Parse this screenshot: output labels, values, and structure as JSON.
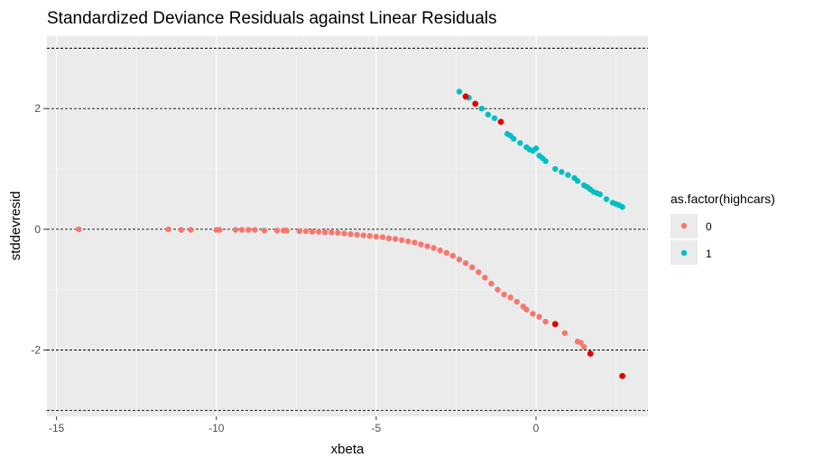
{
  "chart_data": {
    "type": "scatter",
    "title": "Standardized Deviance Residuals against Linear Residuals",
    "xlabel": "xbeta",
    "ylabel": "stddevresid",
    "xlim": [
      -15.3,
      3.5
    ],
    "ylim": [
      -3.1,
      3.2
    ],
    "x_ticks": [
      -15,
      -10,
      -5,
      0
    ],
    "y_ticks": [
      -2,
      0,
      2
    ],
    "grid": true,
    "legend": {
      "title": "as.factor(highcars)",
      "position": "right",
      "entries": [
        {
          "label": "0",
          "color": "#F8766D"
        },
        {
          "label": "1",
          "color": "#00BFC4"
        }
      ]
    },
    "reference_lines": [
      -3,
      -2,
      0,
      2,
      3
    ],
    "highlight_color": "#E00000",
    "series": [
      {
        "name": "0",
        "color": "#F8766D",
        "points": [
          [
            -14.3,
            0.0
          ],
          [
            -11.5,
            0.0
          ],
          [
            -11.1,
            -0.01
          ],
          [
            -10.8,
            -0.01
          ],
          [
            -10.0,
            -0.01
          ],
          [
            -9.9,
            -0.01
          ],
          [
            -9.4,
            -0.01
          ],
          [
            -9.2,
            -0.01
          ],
          [
            -9.0,
            -0.01
          ],
          [
            -8.8,
            -0.01
          ],
          [
            -8.5,
            -0.02
          ],
          [
            -8.1,
            -0.02
          ],
          [
            -7.9,
            -0.02
          ],
          [
            -7.8,
            -0.02
          ],
          [
            -7.4,
            -0.03
          ],
          [
            -7.2,
            -0.03
          ],
          [
            -7.0,
            -0.04
          ],
          [
            -6.8,
            -0.04
          ],
          [
            -6.6,
            -0.05
          ],
          [
            -6.4,
            -0.05
          ],
          [
            -6.2,
            -0.06
          ],
          [
            -6.0,
            -0.07
          ],
          [
            -5.8,
            -0.08
          ],
          [
            -5.6,
            -0.09
          ],
          [
            -5.4,
            -0.1
          ],
          [
            -5.2,
            -0.11
          ],
          [
            -5.0,
            -0.12
          ],
          [
            -4.8,
            -0.13
          ],
          [
            -4.6,
            -0.15
          ],
          [
            -4.4,
            -0.16
          ],
          [
            -4.2,
            -0.18
          ],
          [
            -4.0,
            -0.2
          ],
          [
            -3.8,
            -0.22
          ],
          [
            -3.6,
            -0.25
          ],
          [
            -3.4,
            -0.28
          ],
          [
            -3.2,
            -0.31
          ],
          [
            -3.0,
            -0.35
          ],
          [
            -2.8,
            -0.39
          ],
          [
            -2.6,
            -0.44
          ],
          [
            -2.4,
            -0.5
          ],
          [
            -2.2,
            -0.56
          ],
          [
            -2.0,
            -0.63
          ],
          [
            -1.8,
            -0.71
          ],
          [
            -1.6,
            -0.8
          ],
          [
            -1.4,
            -0.9
          ],
          [
            -1.2,
            -1.0
          ],
          [
            -1.0,
            -1.08
          ],
          [
            -0.8,
            -1.13
          ],
          [
            -0.6,
            -1.2
          ],
          [
            -0.4,
            -1.28
          ],
          [
            -0.3,
            -1.33
          ],
          [
            -0.1,
            -1.4
          ],
          [
            0.1,
            -1.45
          ],
          [
            0.3,
            -1.53
          ],
          [
            0.9,
            -1.72
          ],
          [
            1.3,
            -1.86
          ],
          [
            1.4,
            -1.88
          ],
          [
            1.5,
            -1.95
          ]
        ]
      },
      {
        "name": "1",
        "color": "#00BFC4",
        "points": [
          [
            -2.4,
            2.28
          ],
          [
            -2.1,
            2.18
          ],
          [
            -1.7,
            2.0
          ],
          [
            -1.5,
            1.9
          ],
          [
            -1.3,
            1.84
          ],
          [
            -0.9,
            1.58
          ],
          [
            -0.8,
            1.55
          ],
          [
            -0.7,
            1.5
          ],
          [
            -0.5,
            1.43
          ],
          [
            -0.3,
            1.36
          ],
          [
            -0.2,
            1.32
          ],
          [
            -0.1,
            1.3
          ],
          [
            0.0,
            1.34
          ],
          [
            0.1,
            1.22
          ],
          [
            0.2,
            1.18
          ],
          [
            0.3,
            1.13
          ],
          [
            0.6,
            1.0
          ],
          [
            0.8,
            0.95
          ],
          [
            1.0,
            0.9
          ],
          [
            1.2,
            0.85
          ],
          [
            1.3,
            0.8
          ],
          [
            1.5,
            0.73
          ],
          [
            1.6,
            0.7
          ],
          [
            1.7,
            0.66
          ],
          [
            1.8,
            0.62
          ],
          [
            1.9,
            0.6
          ],
          [
            2.0,
            0.58
          ],
          [
            2.2,
            0.5
          ],
          [
            2.4,
            0.44
          ],
          [
            2.5,
            0.42
          ],
          [
            2.6,
            0.4
          ],
          [
            2.7,
            0.37
          ]
        ]
      }
    ],
    "highlighted_points": [
      [
        -2.2,
        2.2
      ],
      [
        -1.9,
        2.08
      ],
      [
        -1.1,
        1.78
      ],
      [
        0.6,
        -1.57
      ],
      [
        1.7,
        -2.06
      ],
      [
        2.7,
        -2.43
      ]
    ]
  }
}
